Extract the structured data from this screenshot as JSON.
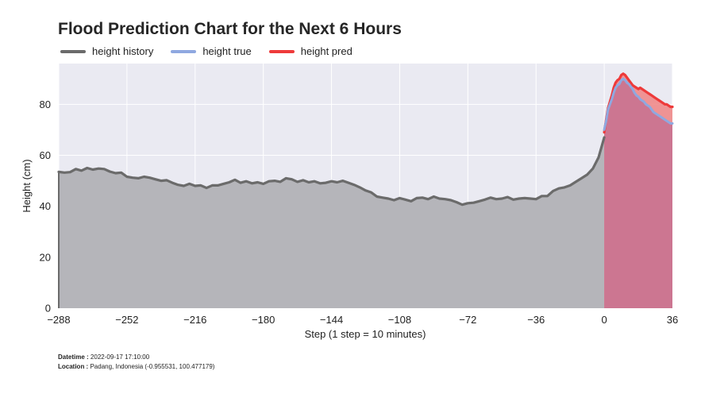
{
  "chart_data": {
    "type": "line",
    "title": "Flood Prediction Chart for the Next 6 Hours",
    "xlabel": "Step (1 step = 10 minutes)",
    "ylabel": "Height (cm)",
    "xlim": [
      -288,
      36
    ],
    "ylim": [
      0,
      96
    ],
    "xticks": [
      -288,
      -252,
      -216,
      -180,
      -144,
      -108,
      -72,
      -36,
      0,
      36
    ],
    "yticks": [
      0,
      20,
      40,
      60,
      80
    ],
    "grid": true,
    "legend_position": "top-left",
    "series": [
      {
        "name": "height history",
        "color": "#6b6b6b",
        "fill": "#b5b5ba",
        "x": [
          -288,
          -285,
          -282,
          -279,
          -276,
          -273,
          -270,
          -267,
          -264,
          -261,
          -258,
          -255,
          -252,
          -249,
          -246,
          -243,
          -240,
          -237,
          -234,
          -231,
          -228,
          -225,
          -222,
          -219,
          -216,
          -213,
          -210,
          -207,
          -204,
          -201,
          -198,
          -195,
          -192,
          -189,
          -186,
          -183,
          -180,
          -177,
          -174,
          -171,
          -168,
          -165,
          -162,
          -159,
          -156,
          -153,
          -150,
          -147,
          -144,
          -141,
          -138,
          -135,
          -132,
          -129,
          -126,
          -123,
          -120,
          -117,
          -114,
          -111,
          -108,
          -105,
          -102,
          -99,
          -96,
          -93,
          -90,
          -87,
          -84,
          -81,
          -78,
          -75,
          -72,
          -69,
          -66,
          -63,
          -60,
          -57,
          -54,
          -51,
          -48,
          -45,
          -42,
          -39,
          -36,
          -33,
          -30,
          -27,
          -24,
          -21,
          -18,
          -15,
          -12,
          -9,
          -6,
          -3,
          0
        ],
        "values": [
          53.5,
          53.2,
          53.4,
          54.6,
          54.0,
          55.0,
          54.4,
          54.8,
          54.6,
          53.6,
          53.0,
          53.2,
          51.6,
          51.2,
          51.0,
          51.6,
          51.2,
          50.6,
          50.0,
          50.2,
          49.2,
          48.4,
          48.0,
          48.8,
          48.0,
          48.2,
          47.2,
          48.2,
          48.2,
          48.8,
          49.4,
          50.4,
          49.2,
          49.8,
          49.0,
          49.4,
          48.8,
          49.8,
          50.0,
          49.6,
          51.0,
          50.6,
          49.6,
          50.2,
          49.4,
          49.8,
          49.0,
          49.2,
          49.8,
          49.4,
          50.0,
          49.2,
          48.4,
          47.4,
          46.2,
          45.4,
          43.8,
          43.4,
          43.0,
          42.4,
          43.2,
          42.6,
          42.0,
          43.2,
          43.4,
          42.8,
          43.8,
          43.0,
          42.8,
          42.4,
          41.6,
          40.6,
          41.2,
          41.4,
          42.0,
          42.6,
          43.4,
          42.8,
          43.0,
          43.6,
          42.6,
          43.0,
          43.2,
          43.0,
          42.8,
          44.0,
          44.0,
          46.0,
          47.0,
          47.4,
          48.2,
          49.6,
          51.0,
          52.4,
          54.8,
          59.2,
          67.0
        ]
      },
      {
        "name": "height true",
        "color": "#8fa8e0",
        "fill": "#c97490",
        "x": [
          0,
          1,
          2,
          3,
          4,
          5,
          6,
          7,
          8,
          9,
          10,
          11,
          12,
          13,
          14,
          15,
          16,
          17,
          18,
          19,
          20,
          21,
          22,
          23,
          24,
          25,
          26,
          27,
          28,
          29,
          30,
          31,
          32,
          33,
          34,
          35,
          36
        ],
        "values": [
          70.0,
          73.5,
          78.0,
          80.0,
          82.0,
          84.5,
          86.5,
          87.5,
          88.0,
          89.5,
          90.0,
          89.5,
          88.5,
          88.0,
          87.0,
          86.0,
          84.5,
          83.5,
          83.0,
          82.0,
          81.5,
          81.0,
          80.0,
          79.5,
          79.0,
          78.0,
          77.0,
          76.5,
          76.0,
          75.5,
          75.0,
          74.5,
          74.0,
          73.5,
          73.0,
          72.5,
          72.5
        ]
      },
      {
        "name": "height pred",
        "color": "#ee3a3a",
        "fill": "#f08a8a",
        "x": [
          0,
          1,
          2,
          3,
          4,
          5,
          6,
          7,
          8,
          9,
          10,
          11,
          12,
          13,
          14,
          15,
          16,
          17,
          18,
          19,
          20,
          21,
          22,
          23,
          24,
          25,
          26,
          27,
          28,
          29,
          30,
          31,
          32,
          33,
          34,
          35,
          36
        ],
        "values": [
          69.0,
          74.0,
          78.5,
          81.0,
          83.5,
          86.5,
          88.5,
          89.5,
          90.0,
          91.5,
          92.0,
          91.5,
          90.5,
          89.5,
          88.5,
          87.5,
          87.0,
          86.5,
          86.0,
          86.5,
          86.0,
          85.5,
          85.0,
          84.5,
          84.0,
          83.5,
          83.0,
          82.5,
          82.0,
          81.5,
          81.0,
          80.5,
          80.0,
          80.0,
          79.5,
          79.0,
          79.0
        ]
      }
    ]
  },
  "footer": {
    "datetime_label": "Datetime :",
    "datetime_value": "2022-09-17 17:10:00",
    "location_label": "Location :",
    "location_value": "Padang, Indonesia (-0.955531, 100.477179)"
  }
}
